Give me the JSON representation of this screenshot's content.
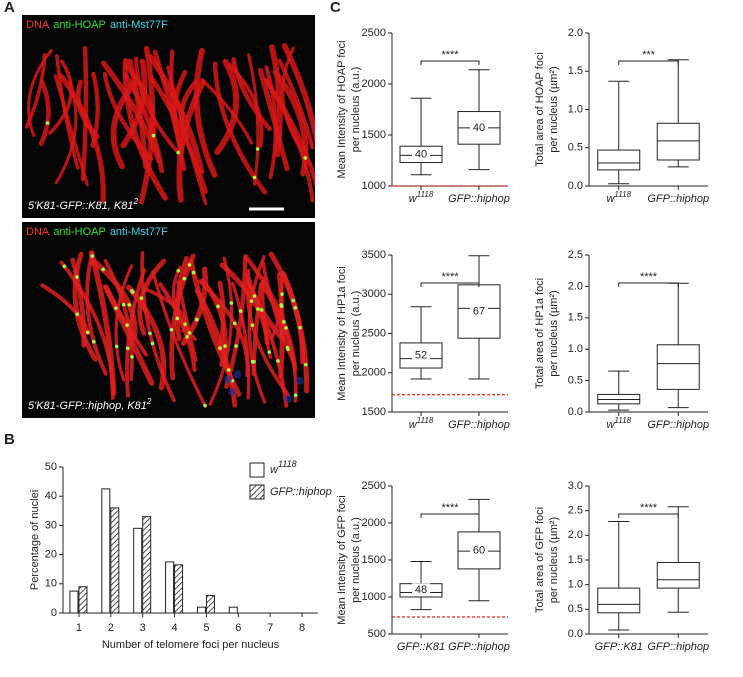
{
  "panels": [
    "A",
    "B",
    "C"
  ],
  "images": [
    {
      "stains": [
        {
          "text": "DNA",
          "color": "#ff3030"
        },
        {
          "text": "anti-HOAP",
          "color": "#30e030"
        },
        {
          "text": "anti-Mst77F",
          "color": "#40d8e8"
        }
      ],
      "genotype": "5'K81-GFP::K81, K81",
      "genotype_sup": "2"
    },
    {
      "stains": [
        {
          "text": "DNA",
          "color": "#ff3030"
        },
        {
          "text": "anti-HOAP",
          "color": "#30e030"
        },
        {
          "text": "anti-Mst77F",
          "color": "#40d8e8"
        }
      ],
      "genotype": "5'K81-GFP::hiphop, K81",
      "genotype_sup": "2"
    }
  ],
  "chart_data": [
    {
      "type": "bar",
      "xlabel": "Number of telomere foci per nucleus",
      "ylabel": "Percentage of nuclei",
      "categories": [
        1,
        2,
        3,
        4,
        5,
        6,
        7,
        8
      ],
      "series": [
        {
          "name": "w",
          "name_sup": "1118",
          "color": "#ffffff",
          "hatch": false,
          "values": [
            7.5,
            42.5,
            29,
            17.5,
            2,
            2,
            0,
            0
          ]
        },
        {
          "name": "GFP::hiphop",
          "color": "#ffffff",
          "hatch": true,
          "values": [
            9,
            36,
            33,
            16.5,
            6,
            0,
            0,
            0
          ]
        }
      ],
      "ylim": [
        0,
        50
      ],
      "yticks": [
        0,
        10,
        20,
        30,
        40,
        50
      ]
    },
    {
      "type": "box",
      "ylabel": [
        "Mean Intensity of HOAP foci",
        "per nucleus (a.u.)"
      ],
      "categories": [
        {
          "text": "w",
          "sup": "1118"
        },
        {
          "text": "GFP::hiphop"
        }
      ],
      "boxes": [
        {
          "min": 1110,
          "q1": 1230,
          "median": 1300,
          "q3": 1390,
          "max": 1860,
          "n": 40
        },
        {
          "min": 1160,
          "q1": 1410,
          "median": 1570,
          "q3": 1730,
          "max": 2140,
          "n": 40
        }
      ],
      "ylim": [
        1000,
        2500
      ],
      "yticks": [
        1000,
        1500,
        2000,
        2500
      ],
      "significance": "****",
      "reference_line": 1000,
      "reference_color": "#e8251f"
    },
    {
      "type": "box",
      "ylabel": [
        "Total area of HOAP foci",
        "per nucleus (µm²)"
      ],
      "categories": [
        {
          "text": "w",
          "sup": "1118"
        },
        {
          "text": "GFP::hiphop"
        }
      ],
      "boxes": [
        {
          "min": 0.03,
          "q1": 0.21,
          "median": 0.3,
          "q3": 0.47,
          "max": 1.37
        },
        {
          "min": 0.25,
          "q1": 0.34,
          "median": 0.59,
          "q3": 0.82,
          "max": 1.65
        }
      ],
      "ylim": [
        0,
        2
      ],
      "yticks": [
        {
          "value": 0,
          "label": "0.0"
        },
        0.5,
        {
          "value": 1,
          "label": "1.0"
        },
        1.5,
        {
          "value": 2,
          "label": "2.0"
        }
      ],
      "significance": "***"
    },
    {
      "type": "box",
      "ylabel": [
        "Mean Intensity of HP1a foci",
        "per nucleus (a.u.)"
      ],
      "categories": [
        {
          "text": "w",
          "sup": "1118"
        },
        {
          "text": "GFP::hiphop"
        }
      ],
      "boxes": [
        {
          "min": 1920,
          "q1": 2060,
          "median": 2180,
          "q3": 2380,
          "max": 2840,
          "n": 52
        },
        {
          "min": 1920,
          "q1": 2440,
          "median": 2820,
          "q3": 3120,
          "max": 3490,
          "n": 67
        }
      ],
      "ylim": [
        1500,
        3500
      ],
      "yticks": [
        1500,
        2000,
        2500,
        3000,
        3500
      ],
      "significance": "****",
      "reference_line": 1720,
      "reference_color": "#e8251f"
    },
    {
      "type": "box",
      "ylabel": [
        "Total area of HP1a foci",
        "per nucleus (µm²)"
      ],
      "categories": [
        {
          "text": "w",
          "sup": "1118"
        },
        {
          "text": "GFP::hiphop"
        }
      ],
      "boxes": [
        {
          "min": 0.03,
          "q1": 0.13,
          "median": 0.2,
          "q3": 0.28,
          "max": 0.65
        },
        {
          "min": 0.07,
          "q1": 0.36,
          "median": 0.77,
          "q3": 1.07,
          "max": 2.05
        }
      ],
      "ylim": [
        0,
        2.5
      ],
      "yticks": [
        {
          "value": 0,
          "label": "0.0"
        },
        0.5,
        {
          "value": 1,
          "label": "1.0"
        },
        1.5,
        {
          "value": 2,
          "label": "2.0"
        },
        2.5
      ],
      "significance": "****"
    },
    {
      "type": "box",
      "ylabel": [
        "Mean Intensity of GFP foci",
        "per nucleus (a.u.)"
      ],
      "categories": [
        {
          "text": "GFP::K81"
        },
        {
          "text": "GFP::hiphop"
        }
      ],
      "boxes": [
        {
          "min": 830,
          "q1": 1000,
          "median": 1060,
          "q3": 1180,
          "max": 1480,
          "n": 48
        },
        {
          "min": 950,
          "q1": 1380,
          "median": 1620,
          "q3": 1880,
          "max": 2320,
          "n": 60
        }
      ],
      "ylim": [
        500,
        2500
      ],
      "yticks": [
        500,
        1000,
        1500,
        2000,
        2500
      ],
      "significance": "****",
      "reference_line": 730,
      "reference_color": "#e8251f"
    },
    {
      "type": "box",
      "ylabel": [
        "Total area of GFP foci",
        "per nucleus (µm²)"
      ],
      "categories": [
        {
          "text": "GFP::K81"
        },
        {
          "text": "GFP::hiphop"
        }
      ],
      "boxes": [
        {
          "min": 0.08,
          "q1": 0.43,
          "median": 0.6,
          "q3": 0.93,
          "max": 2.28
        },
        {
          "min": 0.44,
          "q1": 0.93,
          "median": 1.1,
          "q3": 1.45,
          "max": 2.58
        }
      ],
      "ylim": [
        0,
        3
      ],
      "yticks": [
        {
          "value": 0,
          "label": "0.0"
        },
        0.5,
        {
          "value": 1,
          "label": "1.0"
        },
        1.5,
        {
          "value": 2,
          "label": "2.0"
        },
        2.5,
        {
          "value": 3,
          "label": "3.0"
        }
      ],
      "significance": "****"
    }
  ]
}
